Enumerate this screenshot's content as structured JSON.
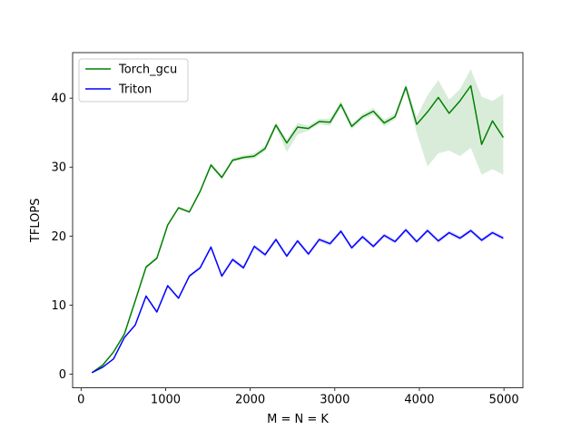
{
  "chart_data": {
    "type": "line",
    "title": "",
    "xlabel": "M = N = K",
    "ylabel": "TFLOPS",
    "xlim": [
      -100,
      5224
    ],
    "ylim": [
      -2,
      46.6
    ],
    "xticks": [
      0,
      1000,
      2000,
      3000,
      4000,
      5000
    ],
    "yticks": [
      0,
      10,
      20,
      30,
      40
    ],
    "grid": false,
    "legend_position": "top-left",
    "x": [
      128,
      256,
      384,
      512,
      640,
      768,
      896,
      1024,
      1152,
      1280,
      1408,
      1536,
      1664,
      1792,
      1920,
      2048,
      2176,
      2304,
      2432,
      2560,
      2688,
      2816,
      2944,
      3072,
      3200,
      3328,
      3456,
      3584,
      3712,
      3840,
      3968,
      4096,
      4224,
      4352,
      4480,
      4608,
      4736,
      4864,
      4992
    ],
    "series": [
      {
        "name": "Torch_gcu",
        "color": "#008000",
        "band_color": "#008000",
        "values": [
          0.2,
          1.3,
          3.2,
          5.8,
          10.6,
          15.5,
          16.8,
          21.6,
          24.1,
          23.5,
          26.5,
          30.3,
          28.5,
          31.0,
          31.4,
          31.6,
          32.7,
          36.1,
          33.5,
          35.8,
          35.6,
          36.6,
          36.5,
          39.1,
          35.9,
          37.3,
          38.1,
          36.4,
          37.3,
          41.6,
          36.2,
          38.0,
          40.1,
          37.8,
          39.6,
          41.8,
          33.3,
          36.7,
          34.3
        ],
        "lower": [
          0.2,
          1.3,
          3.1,
          5.7,
          10.5,
          15.3,
          16.6,
          21.4,
          23.9,
          23.3,
          26.3,
          30.0,
          28.2,
          30.7,
          31.1,
          31.2,
          32.3,
          35.7,
          32.2,
          34.7,
          35.3,
          36.2,
          36.0,
          38.6,
          35.5,
          36.9,
          37.6,
          35.9,
          36.9,
          41.1,
          35.0,
          30.1,
          32.0,
          32.4,
          31.6,
          32.8,
          28.9,
          29.7,
          28.9
        ],
        "upper": [
          0.2,
          1.4,
          3.3,
          5.9,
          10.7,
          15.7,
          17.0,
          21.8,
          24.3,
          23.7,
          26.7,
          30.6,
          28.8,
          31.3,
          31.7,
          32.0,
          33.1,
          36.5,
          34.0,
          36.4,
          36.0,
          37.0,
          37.0,
          39.6,
          36.3,
          37.7,
          38.6,
          36.9,
          37.7,
          42.1,
          37.3,
          40.4,
          42.6,
          39.8,
          41.3,
          44.2,
          40.2,
          39.6,
          40.6
        ]
      },
      {
        "name": "Triton",
        "color": "#0000ff",
        "band_color": "#0000ff",
        "values": [
          0.2,
          1.0,
          2.2,
          5.3,
          7.1,
          11.3,
          9.0,
          12.8,
          11.0,
          14.2,
          15.4,
          18.4,
          14.2,
          16.6,
          15.4,
          18.5,
          17.3,
          19.5,
          17.1,
          19.3,
          17.4,
          19.5,
          18.9,
          20.7,
          18.3,
          19.9,
          18.5,
          20.1,
          19.2,
          20.9,
          19.2,
          20.8,
          19.3,
          20.5,
          19.7,
          20.8,
          19.4,
          20.5,
          19.7
        ],
        "lower": [
          0.2,
          0.9,
          2.1,
          5.2,
          7.0,
          11.1,
          8.8,
          12.6,
          10.8,
          14.0,
          15.2,
          18.1,
          13.9,
          16.3,
          15.1,
          18.2,
          17.0,
          19.2,
          16.8,
          19.0,
          17.1,
          19.2,
          18.6,
          20.4,
          18.0,
          19.6,
          18.2,
          19.8,
          18.9,
          20.6,
          18.9,
          20.5,
          19.0,
          20.2,
          19.4,
          20.5,
          19.1,
          20.2,
          19.4
        ],
        "upper": [
          0.2,
          1.1,
          2.3,
          5.4,
          7.2,
          11.5,
          9.2,
          13.0,
          11.2,
          14.4,
          15.6,
          18.7,
          14.5,
          16.9,
          15.7,
          18.8,
          17.6,
          19.8,
          17.4,
          19.6,
          17.7,
          19.8,
          19.2,
          21.0,
          18.6,
          20.2,
          18.8,
          20.4,
          19.5,
          21.2,
          19.5,
          21.1,
          19.6,
          20.8,
          20.0,
          21.1,
          19.7,
          20.8,
          20.0
        ]
      }
    ]
  }
}
